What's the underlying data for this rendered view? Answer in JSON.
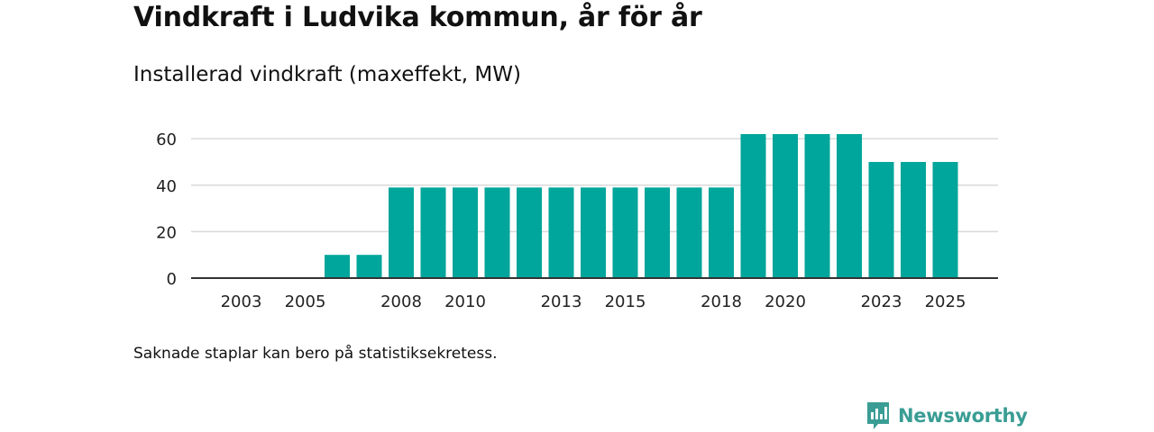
{
  "header": {
    "title": "Vindkraft i Ludvika kommun, år för år",
    "subtitle": "Installerad vindkraft (maxeffekt, MW)"
  },
  "footer": {
    "note": "Saknade staplar kan bero på statistiksekretess.",
    "brand": "Newsworthy",
    "brand_color": "#3a9d94"
  },
  "chart_data": {
    "type": "bar",
    "title": "Vindkraft i Ludvika kommun, år för år",
    "subtitle": "Installerad vindkraft (maxeffekt, MW)",
    "xlabel": "",
    "ylabel": "",
    "categories": [
      2003,
      2004,
      2005,
      2006,
      2007,
      2008,
      2009,
      2010,
      2011,
      2012,
      2013,
      2014,
      2015,
      2016,
      2017,
      2018,
      2019,
      2020,
      2021,
      2022,
      2023,
      2024,
      2025
    ],
    "values": [
      0,
      0,
      0,
      10,
      10,
      39,
      39,
      39,
      39,
      39,
      39,
      39,
      39,
      39,
      39,
      39,
      62,
      62,
      62,
      62,
      50,
      50,
      50
    ],
    "xtick_labels": [
      "2003",
      "2005",
      "2008",
      "2010",
      "2013",
      "2015",
      "2018",
      "2020",
      "2023",
      "2025"
    ],
    "yticks": [
      0,
      20,
      40,
      60
    ],
    "ylim": [
      0,
      62
    ],
    "grid": true,
    "bar_color": "#00a59b"
  }
}
